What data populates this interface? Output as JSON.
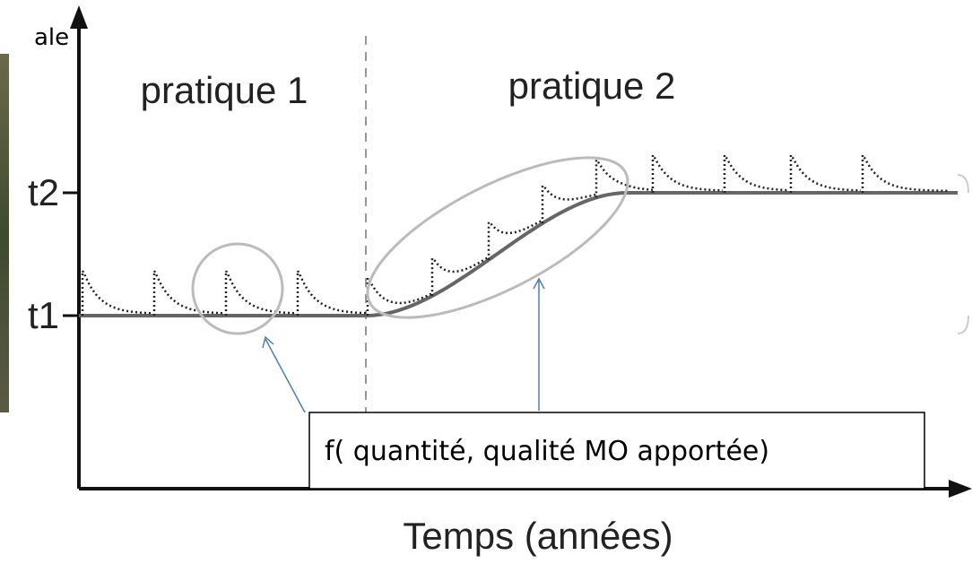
{
  "labels": {
    "corner": "ale",
    "practice_1": "pratique 1",
    "practice_2": "pratique 2",
    "level_1": "t1",
    "level_2": "t2",
    "x_axis": "Temps (années)",
    "callout": "f( quantité, qualité MO apportée)"
  }
}
